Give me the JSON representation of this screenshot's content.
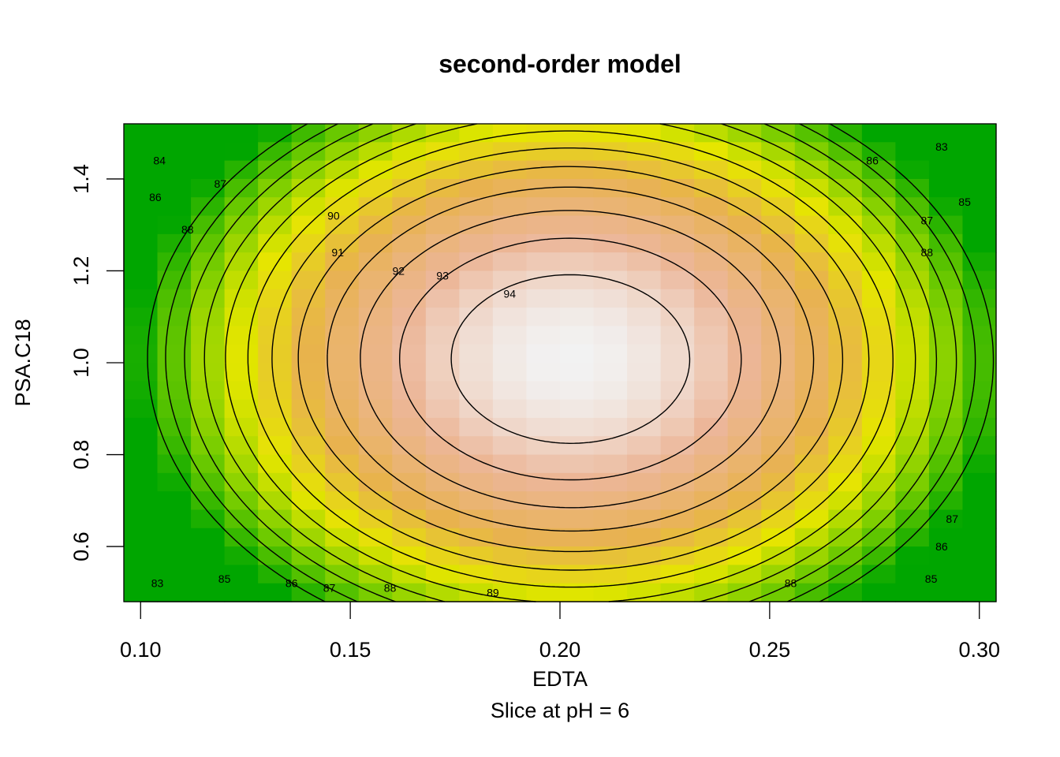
{
  "chart_data": {
    "type": "contour",
    "title": "second-order model",
    "xlabel": "EDTA",
    "ylabel": "PSA.C18",
    "subtitle": "Slice at pH = 6",
    "xlim": [
      0.096,
      0.304
    ],
    "ylim": [
      0.48,
      1.52
    ],
    "xticks": [
      0.1,
      0.15,
      0.2,
      0.25,
      0.3
    ],
    "xtick_labels": [
      "0.10",
      "0.15",
      "0.20",
      "0.25",
      "0.30"
    ],
    "yticks": [
      0.6,
      0.8,
      1.0,
      1.2,
      1.4
    ],
    "ytick_labels": [
      "0.6",
      "0.8",
      "1.0",
      "1.2",
      "1.4"
    ],
    "grid": false,
    "surface": {
      "center": {
        "EDTA": 0.2025,
        "PSA.C18": 1.008
      },
      "max_response": 94.95,
      "grid_cells": {
        "x": 26,
        "y": 26
      }
    },
    "contour_levels": [
      83,
      84,
      85,
      86,
      87,
      88,
      89,
      90,
      91,
      92,
      93,
      94
    ],
    "contour_labels": [
      {
        "text": "84",
        "x": 0.1045,
        "y": 1.44
      },
      {
        "text": "86",
        "x": 0.1035,
        "y": 1.36
      },
      {
        "text": "87",
        "x": 0.119,
        "y": 1.39
      },
      {
        "text": "88",
        "x": 0.1112,
        "y": 1.29
      },
      {
        "text": "90",
        "x": 0.146,
        "y": 1.32
      },
      {
        "text": "91",
        "x": 0.147,
        "y": 1.24
      },
      {
        "text": "92",
        "x": 0.1615,
        "y": 1.2
      },
      {
        "text": "93",
        "x": 0.172,
        "y": 1.19
      },
      {
        "text": "94",
        "x": 0.188,
        "y": 1.15
      },
      {
        "text": "83",
        "x": 0.291,
        "y": 1.47
      },
      {
        "text": "86",
        "x": 0.2745,
        "y": 1.44
      },
      {
        "text": "85",
        "x": 0.2965,
        "y": 1.35
      },
      {
        "text": "87",
        "x": 0.2875,
        "y": 1.31
      },
      {
        "text": "88",
        "x": 0.2875,
        "y": 1.24
      },
      {
        "text": "83",
        "x": 0.104,
        "y": 0.52
      },
      {
        "text": "85",
        "x": 0.12,
        "y": 0.53
      },
      {
        "text": "86",
        "x": 0.136,
        "y": 0.52
      },
      {
        "text": "87",
        "x": 0.145,
        "y": 0.51
      },
      {
        "text": "88",
        "x": 0.1595,
        "y": 0.51
      },
      {
        "text": "89",
        "x": 0.184,
        "y": 0.5
      },
      {
        "text": "88",
        "x": 0.255,
        "y": 0.52
      },
      {
        "text": "87",
        "x": 0.2935,
        "y": 0.66
      },
      {
        "text": "86",
        "x": 0.291,
        "y": 0.6
      },
      {
        "text": "85",
        "x": 0.2885,
        "y": 0.53
      }
    ],
    "colors": {
      "low": "#00a600",
      "mid_green": "#7fcf00",
      "yellow": "#e6e600",
      "orange": "#e8b24e",
      "salmon": "#ecb698",
      "pale": "#f2f2f2",
      "contour_line": "#000000"
    }
  }
}
